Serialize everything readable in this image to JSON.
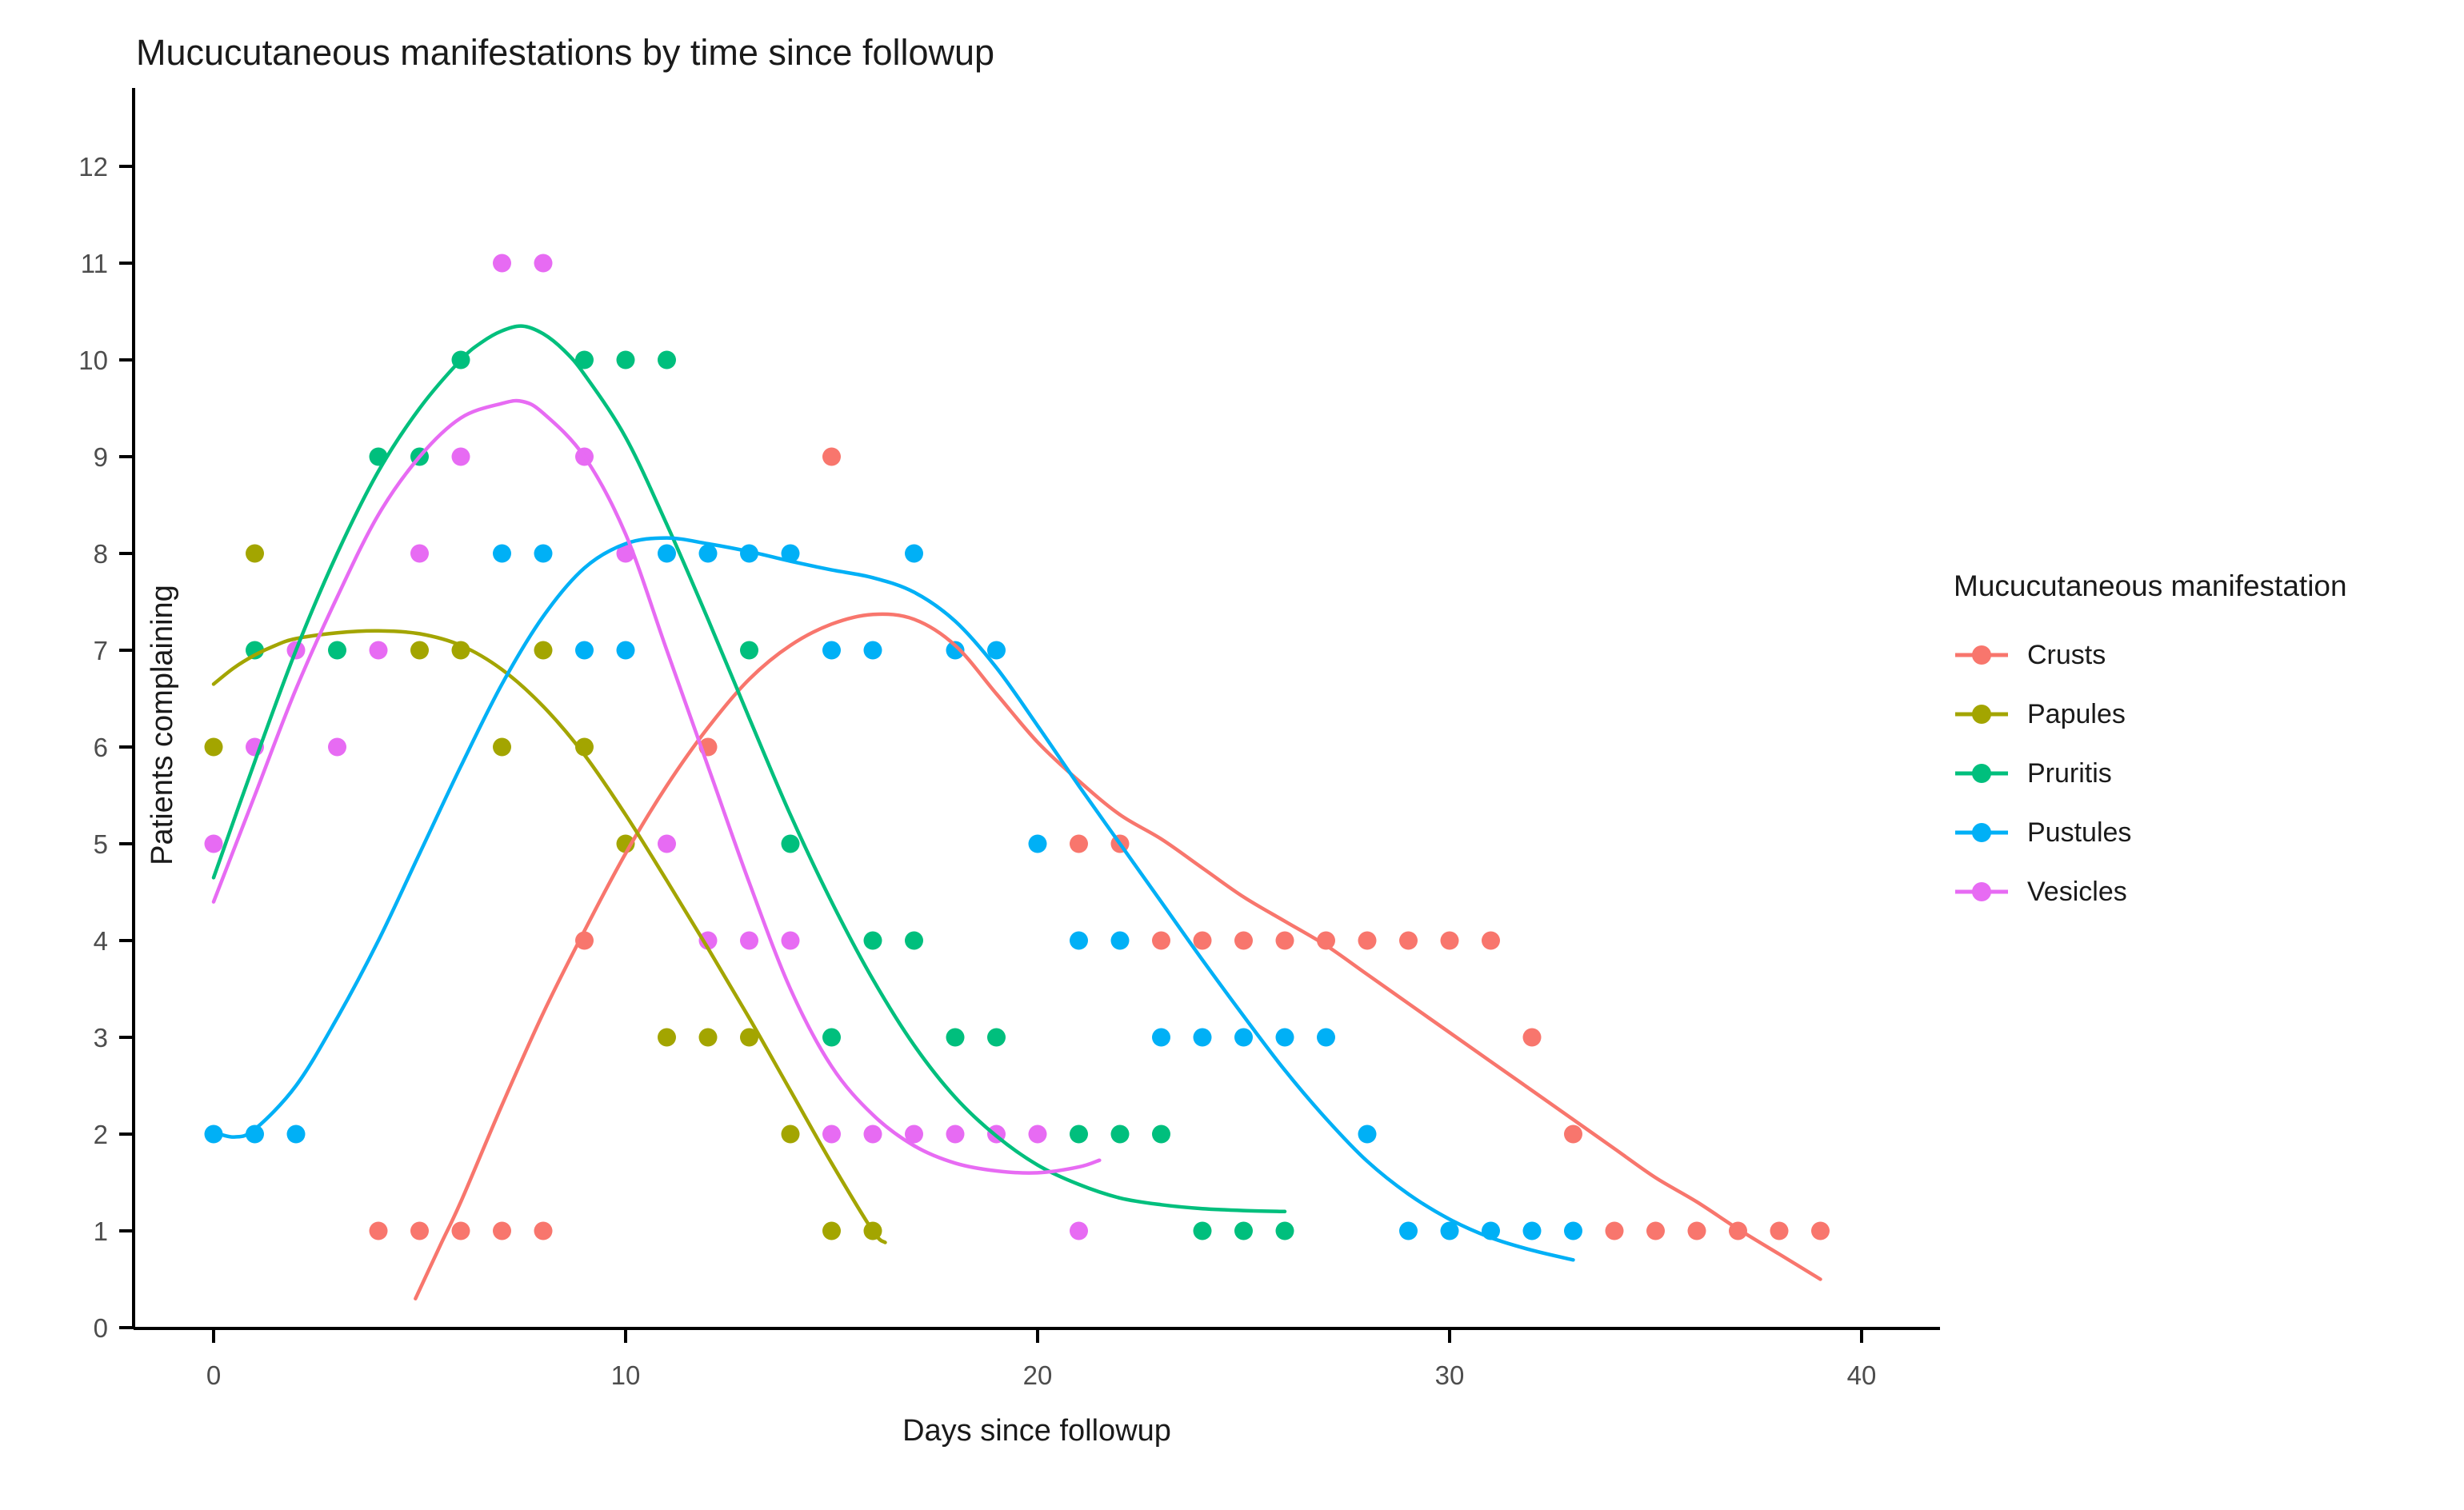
{
  "title": "Mucucutaneous manifestations by time since followup",
  "colors": {
    "background": "#FFFFFF",
    "axis_line": "#000000",
    "tick_label": "#4D4D4D",
    "title_text": "#1A1A1A"
  },
  "chart_data": {
    "type": "scatter",
    "title": "Mucucutaneous manifestations by time since followup",
    "xlabel": "Days since followup",
    "ylabel": "Patients complaining",
    "xlim": [
      -2,
      42
    ],
    "ylim": [
      -0.6,
      12.5
    ],
    "x_ticks": [
      0,
      10,
      20,
      30,
      40
    ],
    "y_ticks": [
      0,
      1,
      2,
      3,
      4,
      5,
      6,
      7,
      8,
      9,
      10,
      11,
      12
    ],
    "grid": false,
    "legend_title": "Mucucutaneous manifestation",
    "legend_position": "right",
    "point_style": "filled-circle",
    "smoother": "loess (no confidence band)",
    "series": [
      {
        "name": "Crusts",
        "color": "#F8766D",
        "points": [
          [
            4,
            1
          ],
          [
            5,
            1
          ],
          [
            6,
            1
          ],
          [
            7,
            1
          ],
          [
            8,
            1
          ],
          [
            9,
            4
          ],
          [
            12,
            6
          ],
          [
            15,
            9
          ],
          [
            21,
            5
          ],
          [
            22,
            5
          ],
          [
            23,
            4
          ],
          [
            24,
            4
          ],
          [
            25,
            4
          ],
          [
            26,
            4
          ],
          [
            27,
            4
          ],
          [
            28,
            4
          ],
          [
            29,
            4
          ],
          [
            30,
            4
          ],
          [
            31,
            4
          ],
          [
            32,
            3
          ],
          [
            33,
            2
          ],
          [
            34,
            1
          ],
          [
            35,
            1
          ],
          [
            36,
            1
          ],
          [
            37,
            1
          ],
          [
            38,
            1
          ],
          [
            39,
            1
          ]
        ],
        "smooth": [
          [
            4.9,
            0.3
          ],
          [
            5.5,
            0.85
          ],
          [
            6,
            1.3
          ],
          [
            7,
            2.3
          ],
          [
            8,
            3.25
          ],
          [
            9,
            4.1
          ],
          [
            10,
            4.9
          ],
          [
            11,
            5.6
          ],
          [
            12,
            6.2
          ],
          [
            13,
            6.7
          ],
          [
            14,
            7.05
          ],
          [
            15,
            7.27
          ],
          [
            16,
            7.37
          ],
          [
            17,
            7.32
          ],
          [
            18,
            7.05
          ],
          [
            19,
            6.55
          ],
          [
            20,
            6.05
          ],
          [
            21,
            5.65
          ],
          [
            22,
            5.3
          ],
          [
            23,
            5.05
          ],
          [
            24,
            4.75
          ],
          [
            25,
            4.45
          ],
          [
            26,
            4.2
          ],
          [
            27,
            3.95
          ],
          [
            28,
            3.65
          ],
          [
            29,
            3.35
          ],
          [
            30,
            3.05
          ],
          [
            31,
            2.75
          ],
          [
            32,
            2.45
          ],
          [
            33,
            2.15
          ],
          [
            34,
            1.85
          ],
          [
            35,
            1.55
          ],
          [
            36,
            1.3
          ],
          [
            37,
            1.02
          ],
          [
            38,
            0.76
          ],
          [
            39,
            0.5
          ]
        ]
      },
      {
        "name": "Papules",
        "color": "#A3A500",
        "points": [
          [
            0,
            6
          ],
          [
            1,
            8
          ],
          [
            5,
            7
          ],
          [
            6,
            7
          ],
          [
            7,
            6
          ],
          [
            8,
            7
          ],
          [
            9,
            6
          ],
          [
            10,
            5
          ],
          [
            11,
            3
          ],
          [
            12,
            3
          ],
          [
            13,
            3
          ],
          [
            14,
            2
          ],
          [
            15,
            1
          ],
          [
            16,
            1
          ]
        ],
        "smooth": [
          [
            0,
            6.65
          ],
          [
            0.5,
            6.82
          ],
          [
            1,
            6.95
          ],
          [
            1.5,
            7.05
          ],
          [
            2,
            7.12
          ],
          [
            3,
            7.18
          ],
          [
            4,
            7.2
          ],
          [
            5,
            7.17
          ],
          [
            6,
            7.05
          ],
          [
            7,
            6.8
          ],
          [
            8,
            6.42
          ],
          [
            9,
            5.92
          ],
          [
            10,
            5.3
          ],
          [
            11,
            4.62
          ],
          [
            12,
            3.92
          ],
          [
            13,
            3.2
          ],
          [
            14,
            2.45
          ],
          [
            15,
            1.7
          ],
          [
            16,
            1.0
          ],
          [
            16.3,
            0.88
          ]
        ]
      },
      {
        "name": "Pruritis",
        "color": "#00BF7D",
        "points": [
          [
            1,
            7
          ],
          [
            3,
            7
          ],
          [
            4,
            9
          ],
          [
            5,
            9
          ],
          [
            6,
            10
          ],
          [
            9,
            10
          ],
          [
            10,
            10
          ],
          [
            11,
            10
          ],
          [
            13,
            7
          ],
          [
            14,
            5
          ],
          [
            15,
            3
          ],
          [
            16,
            4
          ],
          [
            17,
            4
          ],
          [
            18,
            3
          ],
          [
            19,
            3
          ],
          [
            21,
            2
          ],
          [
            22,
            2
          ],
          [
            23,
            2
          ],
          [
            24,
            1
          ],
          [
            25,
            1
          ],
          [
            26,
            1
          ]
        ],
        "smooth": [
          [
            0,
            4.65
          ],
          [
            1,
            5.85
          ],
          [
            2,
            7.0
          ],
          [
            3,
            8.0
          ],
          [
            4,
            8.85
          ],
          [
            5,
            9.5
          ],
          [
            6,
            10.0
          ],
          [
            6.5,
            10.18
          ],
          [
            7,
            10.3
          ],
          [
            7.5,
            10.35
          ],
          [
            8,
            10.27
          ],
          [
            8.5,
            10.1
          ],
          [
            9,
            9.85
          ],
          [
            10,
            9.2
          ],
          [
            11,
            8.3
          ],
          [
            12,
            7.32
          ],
          [
            13,
            6.3
          ],
          [
            14,
            5.3
          ],
          [
            15,
            4.4
          ],
          [
            16,
            3.6
          ],
          [
            17,
            2.92
          ],
          [
            18,
            2.38
          ],
          [
            19,
            1.98
          ],
          [
            20,
            1.68
          ],
          [
            21,
            1.48
          ],
          [
            22,
            1.34
          ],
          [
            23,
            1.27
          ],
          [
            24,
            1.23
          ],
          [
            25,
            1.21
          ],
          [
            26,
            1.2
          ]
        ]
      },
      {
        "name": "Pustules",
        "color": "#00B0F6",
        "points": [
          [
            0,
            2
          ],
          [
            1,
            2
          ],
          [
            2,
            2
          ],
          [
            7,
            8
          ],
          [
            8,
            8
          ],
          [
            9,
            7
          ],
          [
            10,
            7
          ],
          [
            11,
            8
          ],
          [
            12,
            8
          ],
          [
            13,
            8
          ],
          [
            14,
            8
          ],
          [
            15,
            7
          ],
          [
            16,
            7
          ],
          [
            17,
            8
          ],
          [
            18,
            7
          ],
          [
            19,
            7
          ],
          [
            20,
            5
          ],
          [
            21,
            4
          ],
          [
            22,
            4
          ],
          [
            23,
            3
          ],
          [
            24,
            3
          ],
          [
            25,
            3
          ],
          [
            26,
            3
          ],
          [
            27,
            3
          ],
          [
            28,
            2
          ],
          [
            29,
            1
          ],
          [
            30,
            1
          ],
          [
            31,
            1
          ],
          [
            32,
            1
          ],
          [
            33,
            1
          ]
        ],
        "smooth": [
          [
            0,
            2.02
          ],
          [
            0.5,
            1.97
          ],
          [
            1,
            2.05
          ],
          [
            2,
            2.5
          ],
          [
            3,
            3.2
          ],
          [
            4,
            4.0
          ],
          [
            5,
            4.9
          ],
          [
            6,
            5.8
          ],
          [
            7,
            6.65
          ],
          [
            8,
            7.35
          ],
          [
            9,
            7.85
          ],
          [
            10,
            8.1
          ],
          [
            11,
            8.16
          ],
          [
            12,
            8.1
          ],
          [
            13,
            8.02
          ],
          [
            14,
            7.92
          ],
          [
            15,
            7.83
          ],
          [
            16,
            7.75
          ],
          [
            17,
            7.6
          ],
          [
            18,
            7.3
          ],
          [
            19,
            6.82
          ],
          [
            20,
            6.22
          ],
          [
            21,
            5.6
          ],
          [
            22,
            5.0
          ],
          [
            23,
            4.4
          ],
          [
            24,
            3.8
          ],
          [
            25,
            3.22
          ],
          [
            26,
            2.66
          ],
          [
            27,
            2.16
          ],
          [
            28,
            1.72
          ],
          [
            29,
            1.38
          ],
          [
            30,
            1.12
          ],
          [
            31,
            0.93
          ],
          [
            32,
            0.8
          ],
          [
            33,
            0.7
          ]
        ]
      },
      {
        "name": "Vesicles",
        "color": "#E76BF3",
        "points": [
          [
            0,
            5
          ],
          [
            1,
            6
          ],
          [
            2,
            7
          ],
          [
            3,
            6
          ],
          [
            4,
            7
          ],
          [
            5,
            8
          ],
          [
            6,
            9
          ],
          [
            7,
            11
          ],
          [
            8,
            11
          ],
          [
            9,
            9
          ],
          [
            10,
            8
          ],
          [
            11,
            5
          ],
          [
            12,
            4
          ],
          [
            13,
            4
          ],
          [
            14,
            4
          ],
          [
            15,
            2
          ],
          [
            16,
            2
          ],
          [
            17,
            2
          ],
          [
            18,
            2
          ],
          [
            19,
            2
          ],
          [
            20,
            2
          ],
          [
            21,
            1
          ]
        ],
        "smooth": [
          [
            0,
            4.4
          ],
          [
            1,
            5.5
          ],
          [
            2,
            6.6
          ],
          [
            3,
            7.55
          ],
          [
            4,
            8.4
          ],
          [
            5,
            9.0
          ],
          [
            6,
            9.4
          ],
          [
            7,
            9.55
          ],
          [
            7.5,
            9.57
          ],
          [
            8,
            9.45
          ],
          [
            9,
            9.0
          ],
          [
            10,
            8.2
          ],
          [
            11,
            7.0
          ],
          [
            12,
            5.8
          ],
          [
            13,
            4.6
          ],
          [
            14,
            3.5
          ],
          [
            15,
            2.7
          ],
          [
            16,
            2.2
          ],
          [
            17,
            1.88
          ],
          [
            18,
            1.7
          ],
          [
            19,
            1.62
          ],
          [
            20,
            1.6
          ],
          [
            21,
            1.66
          ],
          [
            21.5,
            1.73
          ]
        ]
      }
    ]
  }
}
